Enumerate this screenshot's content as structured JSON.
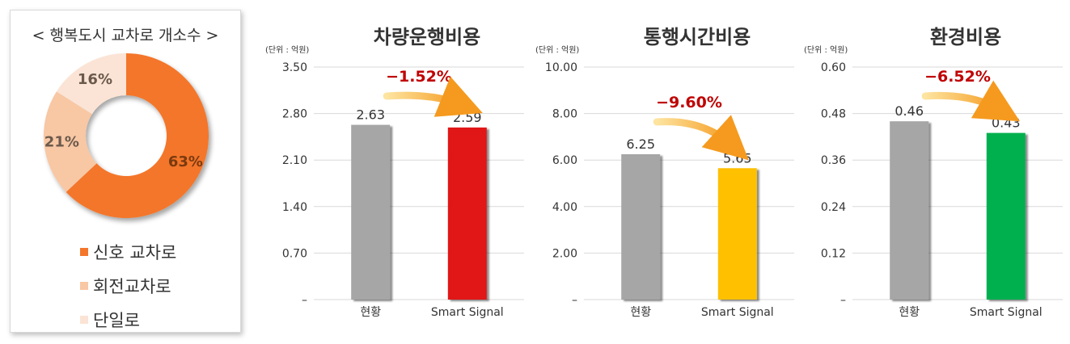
{
  "donut": {
    "title": "< 행복도시 교차로 개소수 >",
    "slices": [
      {
        "label": "신호 교차로",
        "value": 63,
        "text": "63%",
        "color": "#f4762c",
        "text_color": "#7a3a10"
      },
      {
        "label": "회전교차로",
        "value": 21,
        "text": "21%",
        "color": "#f8c7a4",
        "text_color": "#6b5a4c"
      },
      {
        "label": "단일로",
        "value": 16,
        "text": "16%",
        "color": "#fbe4d5",
        "text_color": "#6b5a4c"
      }
    ]
  },
  "chart_data": [
    {
      "type": "bar",
      "title": "차량운행비용",
      "unit": "(단위 : 억원)",
      "categories": [
        "현황",
        "Smart Signal"
      ],
      "values": [
        2.63,
        2.59
      ],
      "value_labels": [
        "2.63",
        "2.59"
      ],
      "colors": [
        "#a6a6a6",
        "#e11212"
      ],
      "ylim": [
        0,
        3.5
      ],
      "ticks": [
        "–",
        "0.70",
        "1.40",
        "2.10",
        "2.80",
        "3.50"
      ],
      "change": "−1.52%"
    },
    {
      "type": "bar",
      "title": "통행시간비용",
      "unit": "(단위 : 억원)",
      "categories": [
        "현황",
        "Smart Signal"
      ],
      "values": [
        6.25,
        5.65
      ],
      "value_labels": [
        "6.25",
        "5.65"
      ],
      "colors": [
        "#a6a6a6",
        "#ffc000"
      ],
      "ylim": [
        0,
        10
      ],
      "ticks": [
        "–",
        "2.00",
        "4.00",
        "6.00",
        "8.00",
        "10.00"
      ],
      "change": "−9.60%"
    },
    {
      "type": "bar",
      "title": "환경비용",
      "unit": "(단위 : 억원)",
      "categories": [
        "현황",
        "Smart Signal"
      ],
      "values": [
        0.46,
        0.43
      ],
      "value_labels": [
        "0.46",
        "0.43"
      ],
      "colors": [
        "#a6a6a6",
        "#00b050"
      ],
      "ylim": [
        0,
        0.6
      ],
      "ticks": [
        "–",
        "0.12",
        "0.24",
        "0.36",
        "0.48",
        "0.60"
      ],
      "change": "−6.52%"
    }
  ]
}
